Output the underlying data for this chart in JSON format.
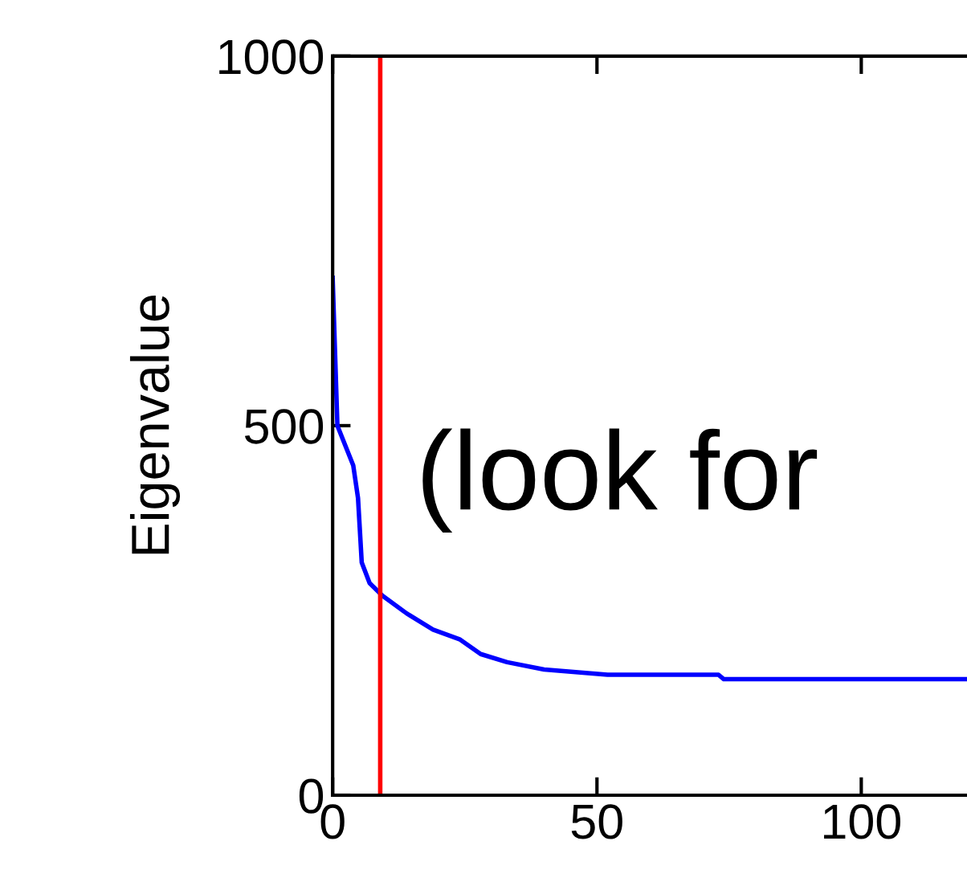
{
  "chart_data": {
    "type": "line",
    "ylabel": "Eigenvalue",
    "x": [
      0,
      0.9,
      3.9,
      4.8,
      5.5,
      7,
      9.4,
      14,
      19,
      24,
      28,
      33,
      40,
      52,
      73,
      74,
      120
    ],
    "series": [
      {
        "color": "#0000ff",
        "values": [
          700,
          500,
          446,
          402,
          315,
          287,
          270,
          246,
          224,
          211,
          191,
          180,
          170,
          163,
          163,
          157,
          157
        ]
      }
    ],
    "xlim": [
      0,
      120
    ],
    "ylim": [
      0,
      1000
    ],
    "xticks": [
      0,
      50,
      100
    ],
    "yticks": [
      0,
      500,
      1000
    ],
    "ref_lines": [
      {
        "axis": "x",
        "value": 9,
        "color": "#ff0000"
      }
    ],
    "annotations": [
      "(look for"
    ],
    "grid": false,
    "legend": false
  }
}
